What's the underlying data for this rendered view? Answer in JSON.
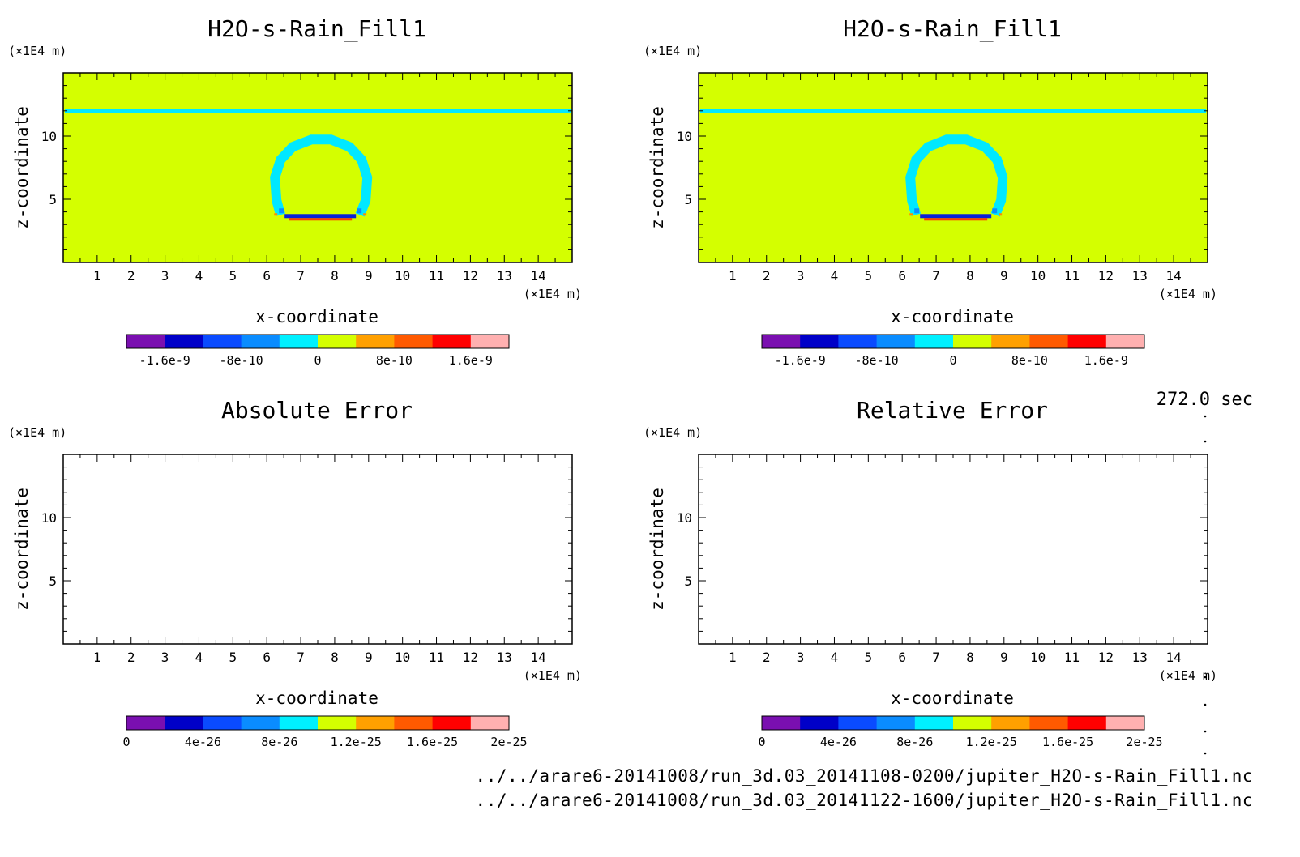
{
  "time_label": "272.0 sec",
  "files": [
    "../../arare6-20141008/run_3d.03_20141108-0200/jupiter_H2O-s-Rain_Fill1.nc",
    "../../arare6-20141008/run_3d.03_20141122-1600/jupiter_H2O-s-Rain_Fill1.nc"
  ],
  "colors": {
    "background_field": "#d4ff00",
    "scale_bar_upper": [
      "#7a0fb0",
      "#0000c8",
      "#0a4bff",
      "#0a8cff",
      "#00f0ff",
      "#d4ff00",
      "#ffa000",
      "#ff5a00",
      "#ff0000",
      "#ffb0b0"
    ],
    "scale_bar_lower": [
      "#7a0fb0",
      "#0000c8",
      "#0a4bff",
      "#0a8cff",
      "#00f0ff",
      "#d4ff00",
      "#ffa000",
      "#ff5a00",
      "#ff0000",
      "#ffb0b0"
    ]
  },
  "chart_data": [
    {
      "type": "heatmap",
      "title": "H2O-s-Rain_Fill1",
      "xlabel": "x-coordinate",
      "ylabel": "z-coordinate",
      "x_unit": "(×1E4 m)",
      "y_unit": "(×1E4 m)",
      "xlim": [
        0,
        15
      ],
      "ylim": [
        0,
        15
      ],
      "x_ticks": [
        "1",
        "2",
        "3",
        "4",
        "5",
        "6",
        "7",
        "8",
        "9",
        "10",
        "11",
        "12",
        "13",
        "14"
      ],
      "y_ticks": [
        "5",
        "10"
      ],
      "colorbar_ticks": [
        "-1.6e-9",
        "-8e-10",
        "0",
        "8e-10",
        "1.6e-9"
      ],
      "features": [
        {
          "kind": "horizontal_band",
          "z": 12.0,
          "color": "cyan"
        },
        {
          "kind": "ring",
          "center_x": 7.6,
          "center_z": 6.2,
          "color": "cyan"
        }
      ]
    },
    {
      "type": "heatmap",
      "title": "H2O-s-Rain_Fill1",
      "xlabel": "x-coordinate",
      "ylabel": "z-coordinate",
      "x_unit": "(×1E4 m)",
      "y_unit": "(×1E4 m)",
      "xlim": [
        0,
        15
      ],
      "ylim": [
        0,
        15
      ],
      "x_ticks": [
        "1",
        "2",
        "3",
        "4",
        "5",
        "6",
        "7",
        "8",
        "9",
        "10",
        "11",
        "12",
        "13",
        "14"
      ],
      "y_ticks": [
        "5",
        "10"
      ],
      "colorbar_ticks": [
        "-1.6e-9",
        "-8e-10",
        "0",
        "8e-10",
        "1.6e-9"
      ],
      "features": [
        {
          "kind": "horizontal_band",
          "z": 12.0,
          "color": "cyan"
        },
        {
          "kind": "ring",
          "center_x": 7.6,
          "center_z": 6.2,
          "color": "cyan"
        }
      ]
    },
    {
      "type": "heatmap",
      "title": "Absolute Error",
      "xlabel": "x-coordinate",
      "ylabel": "z-coordinate",
      "x_unit": "(×1E4 m)",
      "y_unit": "(×1E4 m)",
      "xlim": [
        0,
        15
      ],
      "ylim": [
        0,
        15
      ],
      "x_ticks": [
        "1",
        "2",
        "3",
        "4",
        "5",
        "6",
        "7",
        "8",
        "9",
        "10",
        "11",
        "12",
        "13",
        "14"
      ],
      "y_ticks": [
        "5",
        "10"
      ],
      "colorbar_ticks": [
        "0",
        "4e-26",
        "8e-26",
        "1.2e-25",
        "1.6e-25",
        "2e-25"
      ],
      "features": []
    },
    {
      "type": "heatmap",
      "title": "Relative Error",
      "xlabel": "x-coordinate",
      "ylabel": "z-coordinate",
      "x_unit": "(×1E4 m)",
      "y_unit": "(×1E4 m)",
      "xlim": [
        0,
        15
      ],
      "ylim": [
        0,
        15
      ],
      "x_ticks": [
        "1",
        "2",
        "3",
        "4",
        "5",
        "6",
        "7",
        "8",
        "9",
        "10",
        "11",
        "12",
        "13",
        "14"
      ],
      "y_ticks": [
        "5",
        "10"
      ],
      "colorbar_ticks": [
        "0",
        "4e-26",
        "8e-26",
        "1.2e-25",
        "1.6e-25",
        "2e-25"
      ],
      "features": []
    }
  ]
}
